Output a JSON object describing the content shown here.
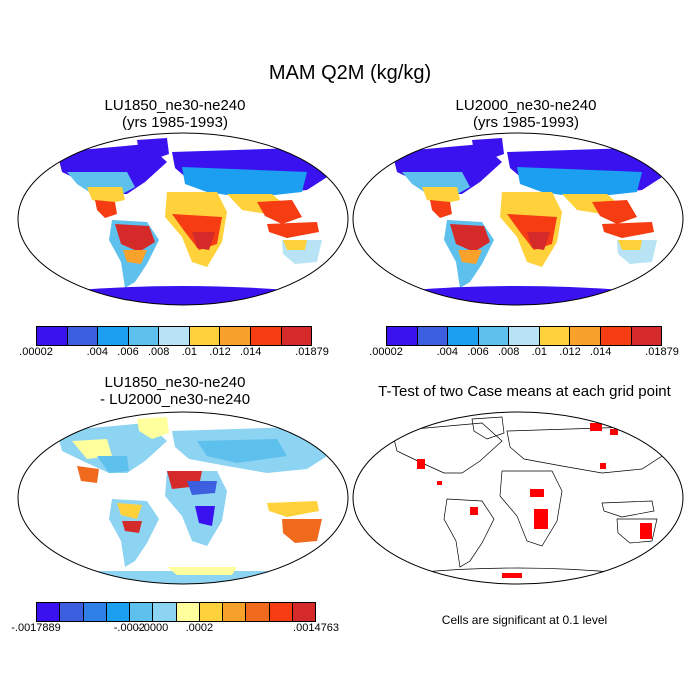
{
  "main_title": "MAM Q2M (kg/kg)",
  "panels": [
    {
      "title_line1": "LU1850_ne30-ne240",
      "title_line2": "(yrs 1985-1993)"
    },
    {
      "title_line1": "LU2000_ne30-ne240",
      "title_line2": "(yrs 1985-1993)"
    },
    {
      "title_line1": "LU1850_ne30-ne240",
      "title_line2": "- LU2000_ne30-ne240"
    },
    {
      "title_line1": "T-Test of two Case means at each grid point",
      "title_line2": ""
    }
  ],
  "colorbar_abs": {
    "colors": [
      "#3a12ef",
      "#3c5fe0",
      "#1c9ff0",
      "#5ec0ec",
      "#b8e3f4",
      "#ffd23c",
      "#f8a22c",
      "#f53c12",
      "#d42a2a"
    ],
    "labels": [
      ".00002",
      ".004",
      ".006",
      ".008",
      ".01",
      ".012",
      ".014",
      ".01879"
    ]
  },
  "colorbar_diff": {
    "colors": [
      "#3a12ef",
      "#3c5fe0",
      "#2f7fe8",
      "#1c9ff0",
      "#5ec0ec",
      "#8dd3f2",
      "#ffff9e",
      "#ffd23c",
      "#f8a22c",
      "#f06a1e",
      "#f53c12",
      "#d42a2a"
    ],
    "labels": [
      "-.0017889",
      "-.0002",
      "-.0000",
      ".0002",
      ".0014763"
    ]
  },
  "ttest_note": "Cells are significant at 0.1 level"
}
